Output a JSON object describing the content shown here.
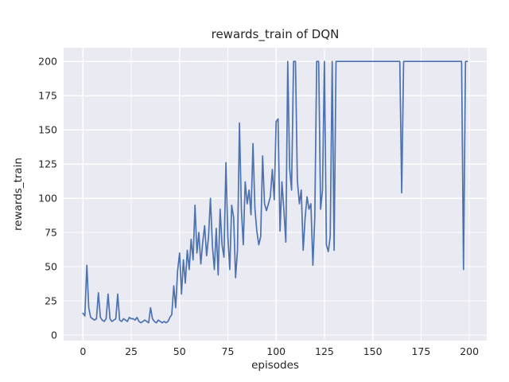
{
  "chart_data": {
    "type": "line",
    "title": "rewards_train of DQN",
    "xlabel": "episodes",
    "ylabel": "rewards_train",
    "x_ticks": [
      0,
      25,
      50,
      75,
      100,
      125,
      150,
      175,
      200
    ],
    "y_ticks": [
      0,
      25,
      50,
      75,
      100,
      125,
      150,
      175,
      200
    ],
    "xlim": [
      -10,
      209
    ],
    "ylim": [
      -4,
      210
    ],
    "grid": true,
    "legend": "none",
    "plot_bg": "#eaeaf2",
    "grid_color": "#ffffff",
    "line_color": "#4c72b0",
    "series": [
      {
        "name": "rewards_train",
        "x_start": 0,
        "x_step": 1,
        "values": [
          16,
          14,
          51,
          20,
          13,
          12,
          11,
          12,
          31,
          13,
          11,
          10,
          12,
          30,
          12,
          10,
          11,
          12,
          30,
          11,
          10,
          12,
          11,
          10,
          13,
          12,
          12,
          11,
          13,
          10,
          9,
          10,
          11,
          10,
          9,
          20,
          12,
          10,
          9,
          11,
          10,
          9,
          10,
          9,
          10,
          13,
          15,
          36,
          20,
          47,
          60,
          30,
          55,
          38,
          62,
          48,
          70,
          55,
          95,
          60,
          75,
          52,
          68,
          80,
          58,
          72,
          100,
          65,
          48,
          78,
          44,
          92,
          66,
          57,
          126,
          72,
          48,
          95,
          86,
          42,
          62,
          155,
          92,
          66,
          112,
          96,
          106,
          88,
          140,
          93,
          76,
          66,
          72,
          131,
          96,
          91,
          96,
          101,
          121,
          99,
          156,
          158,
          76,
          112,
          92,
          68,
          200,
          122,
          106,
          200,
          200,
          113,
          96,
          106,
          62,
          86,
          101,
          92,
          96,
          51,
          86,
          200,
          200,
          92,
          106,
          200,
          66,
          61,
          72,
          200,
          62,
          200,
          200,
          200,
          200,
          200,
          200,
          200,
          200,
          200,
          200,
          200,
          200,
          200,
          200,
          200,
          200,
          200,
          200,
          200,
          200,
          200,
          200,
          200,
          200,
          200,
          200,
          200,
          200,
          200,
          200,
          200,
          200,
          200,
          200,
          104,
          200,
          200,
          200,
          200,
          200,
          200,
          200,
          200,
          200,
          200,
          200,
          200,
          200,
          200,
          200,
          200,
          200,
          200,
          200,
          200,
          200,
          200,
          200,
          200,
          200,
          200,
          200,
          200,
          200,
          200,
          200,
          48,
          200,
          200
        ]
      }
    ]
  }
}
